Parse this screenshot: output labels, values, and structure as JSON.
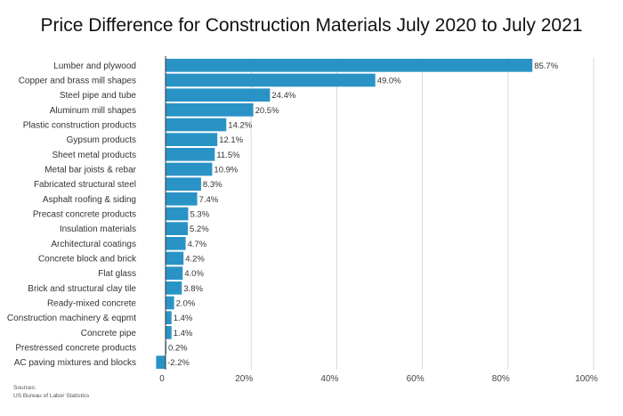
{
  "title": "Price Difference for Construction Materials July 2020 to July 2021",
  "source": {
    "heading": "Sources:",
    "text": "US Bureau of Labor Statistics"
  },
  "colors": {
    "bar": "#2a93c6",
    "grid": "#d9d9d9",
    "axis": "#333333"
  },
  "chart_data": {
    "type": "bar",
    "orientation": "horizontal",
    "title": "Price Difference for Construction Materials July 2020 to July 2021",
    "categories": [
      "Lumber and plywood",
      "Copper and brass mill shapes",
      "Steel pipe and tube",
      "Aluminum mill shapes",
      "Plastic construction products",
      "Gypsum products",
      "Sheet metal products",
      "Metal bar joists & rebar",
      "Fabricated structural steel",
      "Asphalt roofing & siding",
      "Precast concrete products",
      "Insulation materials",
      "Architectural coatings",
      "Concrete block and brick",
      "Flat glass",
      "Brick and structural clay tile",
      "Ready-mixed concrete",
      "Construction machinery & eqpmt",
      "Concrete pipe",
      "Prestressed concrete products",
      "AC paving mixtures and blocks"
    ],
    "values": [
      85.7,
      49.0,
      24.4,
      20.5,
      14.2,
      12.1,
      11.5,
      10.9,
      8.3,
      7.4,
      5.3,
      5.2,
      4.7,
      4.2,
      4.0,
      3.8,
      2.0,
      1.4,
      1.4,
      0.2,
      -2.2
    ],
    "value_labels": [
      "85.7%",
      "49.0%",
      "24.4%",
      "20.5%",
      "14.2%",
      "12.1%",
      "11.5%",
      "10.9%",
      "8.3%",
      "7.4%",
      "5.3%",
      "5.2%",
      "4.7%",
      "4.2%",
      "4.0%",
      "3.8%",
      "2.0%",
      "1.4%",
      "1.4%",
      "0.2%",
      "-2.2%"
    ],
    "xlim": [
      0,
      100
    ],
    "xticks": [
      0,
      20,
      40,
      60,
      80,
      100
    ],
    "xtick_labels": [
      "0",
      "20%",
      "40%",
      "60%",
      "80%",
      "100%"
    ],
    "grid": "vertical",
    "legend": "none"
  }
}
